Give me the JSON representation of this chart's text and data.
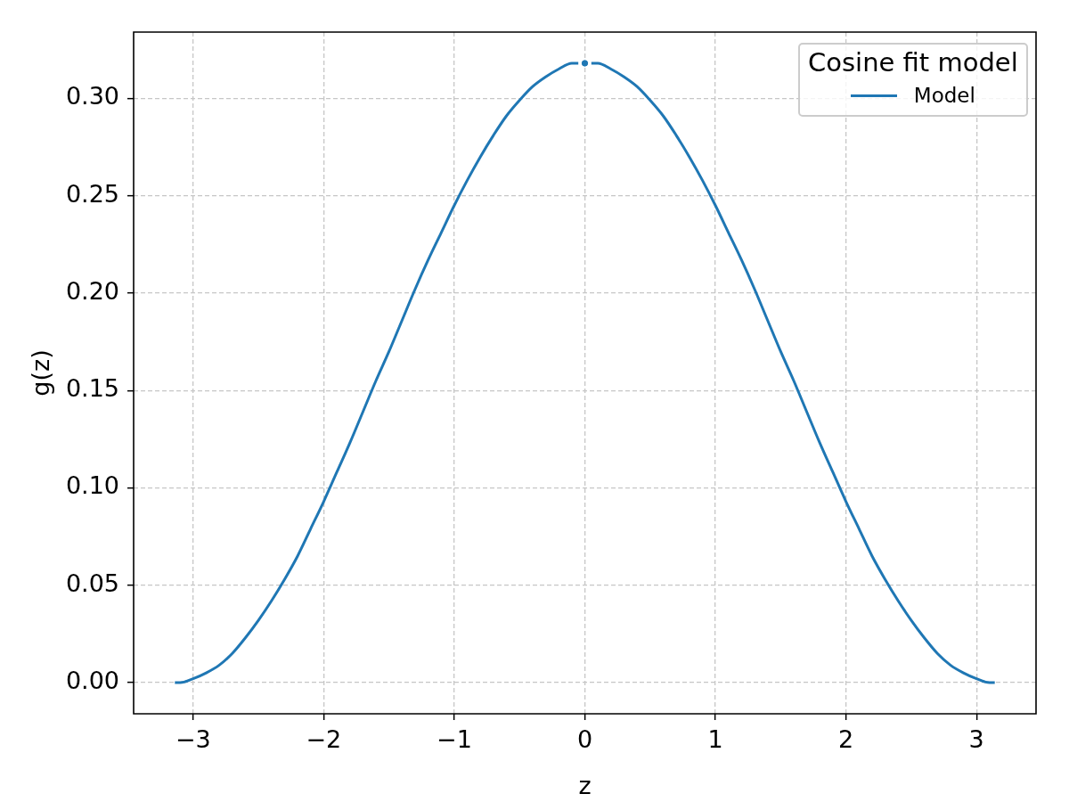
{
  "chart_data": {
    "type": "line",
    "xlabel": "z",
    "ylabel": "g(z)",
    "legend_title": "Cosine fit model",
    "legend": "top right",
    "grid": true,
    "line_style": "solid",
    "xlim": [
      -3.456,
      3.456
    ],
    "ylim": [
      -0.016,
      0.334
    ],
    "xticks": [
      {
        "value": -3,
        "label": "−3"
      },
      {
        "value": -2,
        "label": "−2"
      },
      {
        "value": -1,
        "label": "−1"
      },
      0,
      1,
      2,
      3
    ],
    "yticks": [
      {
        "value": 0,
        "label": "0.00"
      },
      {
        "value": 0.05,
        "label": "0.05"
      },
      {
        "value": 0.1,
        "label": "0.10"
      },
      {
        "value": 0.15,
        "label": "0.15"
      },
      {
        "value": 0.2,
        "label": "0.20"
      },
      {
        "value": 0.25,
        "label": "0.25"
      },
      {
        "value": 0.3,
        "label": "0.30"
      }
    ],
    "series": [
      {
        "name": "Model",
        "color": "#1f77b4",
        "x": [
          -3.14,
          -3.1,
          -3.0,
          -2.9,
          -2.8,
          -2.7,
          -2.6,
          -2.5,
          -2.4,
          -2.3,
          -2.2,
          -2.1,
          -2.0,
          -1.9,
          -1.8,
          -1.7,
          -1.6,
          -1.5,
          -1.4,
          -1.3,
          -1.2,
          -1.1,
          -1.0,
          -0.9,
          -0.8,
          -0.7,
          -0.6,
          -0.5,
          -0.4,
          -0.3,
          -0.2,
          -0.1,
          -0.05,
          0,
          0.05,
          0.1,
          0.2,
          0.3,
          0.4,
          0.5,
          0.6,
          0.7,
          0.8,
          0.9,
          1.0,
          1.1,
          1.2,
          1.3,
          1.4,
          1.5,
          1.6,
          1.7,
          1.8,
          1.9,
          2.0,
          2.1,
          2.2,
          2.3,
          2.4,
          2.5,
          2.6,
          2.7,
          2.8,
          2.9,
          3.0,
          3.1,
          3.14
        ],
        "values": [
          0.0,
          0.0,
          0.002,
          0.005,
          0.009,
          0.015,
          0.023,
          0.032,
          0.042,
          0.053,
          0.065,
          0.079,
          0.093,
          0.108,
          0.123,
          0.139,
          0.155,
          0.17,
          0.186,
          0.202,
          0.217,
          0.231,
          0.245,
          0.258,
          0.27,
          0.281,
          0.291,
          0.299,
          0.306,
          0.311,
          0.315,
          0.318,
          0.318,
          null,
          0.318,
          0.318,
          0.315,
          0.311,
          0.306,
          0.299,
          0.291,
          0.281,
          0.27,
          0.258,
          0.245,
          0.231,
          0.217,
          0.202,
          0.186,
          0.17,
          0.155,
          0.139,
          0.123,
          0.108,
          0.093,
          0.079,
          0.065,
          0.053,
          0.042,
          0.032,
          0.023,
          0.015,
          0.009,
          0.005,
          0.002,
          0.0,
          0.0
        ]
      },
      {
        "type": "scatter",
        "color": "#1f77b4",
        "marker": "circle",
        "x": [
          0
        ],
        "values": [
          0.318
        ]
      }
    ]
  }
}
